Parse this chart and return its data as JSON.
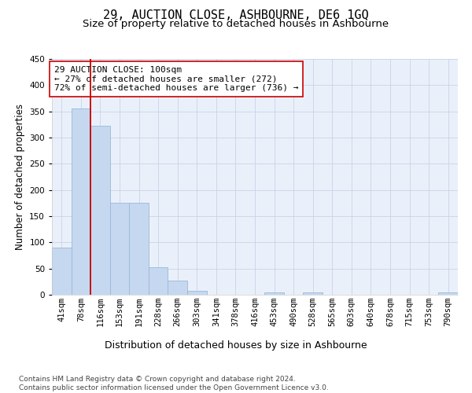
{
  "title": "29, AUCTION CLOSE, ASHBOURNE, DE6 1GQ",
  "subtitle": "Size of property relative to detached houses in Ashbourne",
  "xlabel": "Distribution of detached houses by size in Ashbourne",
  "ylabel": "Number of detached properties",
  "categories": [
    "41sqm",
    "78sqm",
    "116sqm",
    "153sqm",
    "191sqm",
    "228sqm",
    "266sqm",
    "303sqm",
    "341sqm",
    "378sqm",
    "416sqm",
    "453sqm",
    "490sqm",
    "528sqm",
    "565sqm",
    "603sqm",
    "640sqm",
    "678sqm",
    "715sqm",
    "753sqm",
    "790sqm"
  ],
  "values": [
    90,
    355,
    323,
    175,
    175,
    52,
    27,
    8,
    0,
    0,
    0,
    5,
    0,
    5,
    0,
    0,
    0,
    0,
    0,
    0,
    5
  ],
  "bar_color": "#c5d8f0",
  "bar_edge_color": "#9ab8d8",
  "vline_color": "#cc0000",
  "ylim": [
    0,
    450
  ],
  "yticks": [
    0,
    50,
    100,
    150,
    200,
    250,
    300,
    350,
    400,
    450
  ],
  "annotation_text": "29 AUCTION CLOSE: 100sqm\n← 27% of detached houses are smaller (272)\n72% of semi-detached houses are larger (736) →",
  "annotation_box_color": "#ffffff",
  "annotation_box_edge": "#cc0000",
  "footer_text": "Contains HM Land Registry data © Crown copyright and database right 2024.\nContains public sector information licensed under the Open Government Licence v3.0.",
  "bg_color": "#ffffff",
  "plot_bg_color": "#eaf0fa",
  "grid_color": "#c8d4e8",
  "title_fontsize": 11,
  "subtitle_fontsize": 9.5,
  "xlabel_fontsize": 9,
  "ylabel_fontsize": 8.5,
  "tick_fontsize": 7.5,
  "annotation_fontsize": 8,
  "footer_fontsize": 6.5
}
